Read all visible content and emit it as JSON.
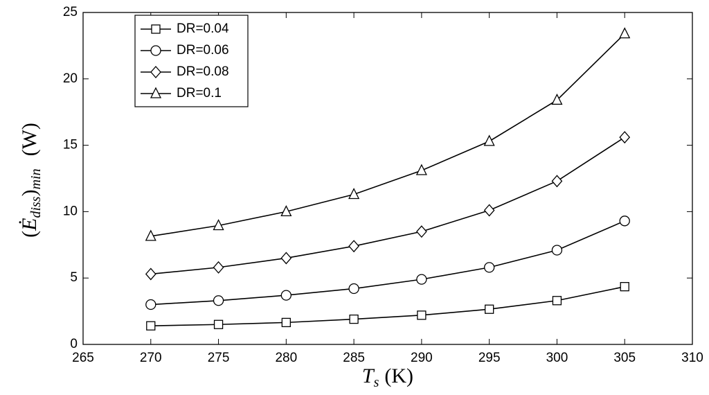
{
  "chart_data": {
    "type": "line",
    "x": [
      270,
      275,
      280,
      285,
      290,
      295,
      300,
      305
    ],
    "series": [
      {
        "name": "DR=0.04",
        "color": "#000000",
        "marker": "square",
        "values": [
          1.4,
          1.5,
          1.65,
          1.9,
          2.2,
          2.65,
          3.3,
          4.35
        ]
      },
      {
        "name": "DR=0.06",
        "color": "#000000",
        "marker": "circle",
        "values": [
          3.0,
          3.3,
          3.7,
          4.2,
          4.9,
          5.8,
          7.1,
          9.3
        ]
      },
      {
        "name": "DR=0.08",
        "color": "#000000",
        "marker": "diamond",
        "values": [
          5.3,
          5.8,
          6.5,
          7.4,
          8.5,
          10.1,
          12.3,
          15.6
        ]
      },
      {
        "name": "DR=0.1",
        "color": "#000000",
        "marker": "triangle",
        "values": [
          8.15,
          8.95,
          10.0,
          11.3,
          13.1,
          15.3,
          18.4,
          23.4
        ]
      }
    ],
    "xlim": [
      265,
      310
    ],
    "xticks": [
      265,
      270,
      275,
      280,
      285,
      290,
      295,
      300,
      305,
      310
    ],
    "ylim": [
      0,
      25
    ],
    "yticks": [
      0,
      5,
      10,
      15,
      20,
      25
    ],
    "x_label": [
      "T",
      "s",
      "(K)"
    ],
    "y_label": [
      "(",
      "Ė",
      "diss",
      ")",
      "min",
      "(W)"
    ],
    "grid": false,
    "legend": "upper left"
  }
}
